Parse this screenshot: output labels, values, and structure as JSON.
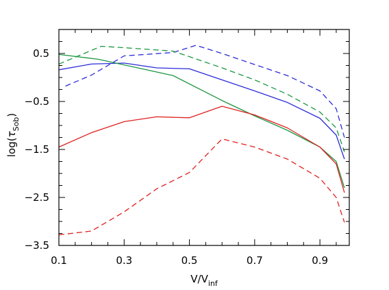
{
  "chart_data": {
    "type": "line",
    "title": "",
    "xlabel": {
      "main": "V/V",
      "sub": "inf"
    },
    "ylabel": {
      "prefix": "log(",
      "symbol": "τ",
      "sub": "Sob",
      "suffix": ")"
    },
    "xlim": [
      0.1,
      0.99
    ],
    "ylim": [
      -3.5,
      1.0
    ],
    "xticks": [
      0.1,
      0.3,
      0.5,
      0.7,
      0.9
    ],
    "xtick_labels": [
      "0.1",
      "0.3",
      "0.5",
      "0.7",
      "0.9"
    ],
    "yticks": [
      -3.5,
      -2.5,
      -1.5,
      -0.5,
      0.5
    ],
    "ytick_labels": [
      "−3.5",
      "−2.5",
      "−1.5",
      "−0.5",
      "0.5"
    ],
    "grid": false,
    "legend": "none",
    "series": [
      {
        "color": "#2b2bd9",
        "dash": "solid",
        "x": [
          0.1,
          0.2,
          0.3,
          0.4,
          0.5,
          0.6,
          0.7,
          0.8,
          0.9,
          0.95,
          0.975
        ],
        "y": [
          0.16,
          0.28,
          0.3,
          0.2,
          0.18,
          -0.05,
          -0.28,
          -0.52,
          -0.85,
          -1.2,
          -1.7
        ]
      },
      {
        "color": "#2b2bd9",
        "dash": "dashed",
        "x": [
          0.12,
          0.2,
          0.3,
          0.45,
          0.52,
          0.6,
          0.7,
          0.8,
          0.9,
          0.95,
          0.975
        ],
        "y": [
          -0.18,
          0.05,
          0.45,
          0.52,
          0.67,
          0.5,
          0.27,
          0.04,
          -0.28,
          -0.65,
          -1.25
        ]
      },
      {
        "color": "#1a9641",
        "dash": "solid",
        "x": [
          0.1,
          0.22,
          0.45,
          0.6,
          0.7,
          0.8,
          0.9,
          0.95,
          0.975
        ],
        "y": [
          0.48,
          0.38,
          0.04,
          -0.48,
          -0.8,
          -1.1,
          -1.45,
          -1.75,
          -2.3
        ]
      },
      {
        "color": "#1a9641",
        "dash": "dashed",
        "x": [
          0.1,
          0.23,
          0.3,
          0.45,
          0.6,
          0.7,
          0.8,
          0.9,
          0.95,
          0.975
        ],
        "y": [
          0.28,
          0.65,
          0.62,
          0.55,
          0.2,
          -0.05,
          -0.35,
          -0.72,
          -1.05,
          -1.55
        ]
      },
      {
        "color": "#e02020",
        "dash": "solid",
        "x": [
          0.1,
          0.2,
          0.3,
          0.4,
          0.5,
          0.6,
          0.7,
          0.8,
          0.9,
          0.95,
          0.975
        ],
        "y": [
          -1.45,
          -1.15,
          -0.92,
          -0.82,
          -0.84,
          -0.6,
          -0.78,
          -1.05,
          -1.45,
          -1.8,
          -2.4
        ]
      },
      {
        "color": "#e02020",
        "dash": "dashed",
        "x": [
          0.1,
          0.2,
          0.3,
          0.4,
          0.5,
          0.6,
          0.7,
          0.8,
          0.9,
          0.95,
          0.975
        ],
        "y": [
          -3.28,
          -3.2,
          -2.8,
          -2.32,
          -1.98,
          -1.28,
          -1.45,
          -1.7,
          -2.1,
          -2.5,
          -3.02
        ]
      }
    ]
  }
}
